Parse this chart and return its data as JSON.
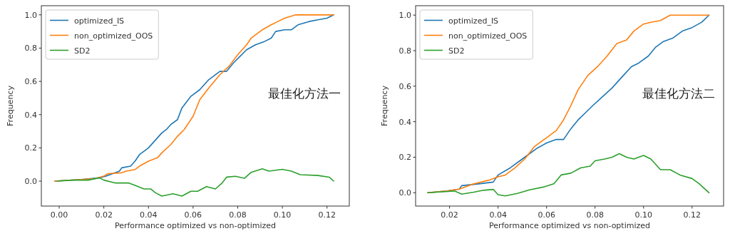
{
  "chart_data": [
    {
      "type": "line",
      "xlabel": "Performance optimized vs non-optimized",
      "ylabel": "Frequency",
      "annotations": [
        "最佳化方法一"
      ],
      "legend": "top left",
      "grid": false,
      "xlim": [
        -0.008,
        0.13
      ],
      "ylim": [
        -0.15,
        1.055
      ],
      "xticks": [
        {
          "value": 0,
          "label": "0.00"
        },
        {
          "value": 0.02,
          "label": "0.02"
        },
        {
          "value": 0.04,
          "label": "0.04"
        },
        {
          "value": 0.06,
          "label": "0.06"
        },
        {
          "value": 0.08,
          "label": "0.08"
        },
        {
          "value": 0.1,
          "label": "0.10"
        },
        {
          "value": 0.12,
          "label": "0.12"
        }
      ],
      "yticks": [
        {
          "value": 0,
          "label": "0.0"
        },
        {
          "value": 0.2,
          "label": "0.2"
        },
        {
          "value": 0.4,
          "label": "0.4"
        },
        {
          "value": 0.6,
          "label": "0.6"
        },
        {
          "value": 0.8,
          "label": "0.8"
        },
        {
          "value": 1,
          "label": "1.0"
        }
      ],
      "series": [
        {
          "name": "optimized_IS",
          "color": "#1f77b4",
          "x": [
            -0.002,
            0.01,
            0.018,
            0.021,
            0.024,
            0.027,
            0.028,
            0.032,
            0.034,
            0.036,
            0.038,
            0.04,
            0.042,
            0.044,
            0.046,
            0.048,
            0.05,
            0.053,
            0.055,
            0.059,
            0.063,
            0.067,
            0.072,
            0.075,
            0.078,
            0.081,
            0.084,
            0.088,
            0.092,
            0.095,
            0.097,
            0.101,
            0.104,
            0.107,
            0.112,
            0.116,
            0.12,
            0.123
          ],
          "values": [
            0.0,
            0.01,
            0.02,
            0.03,
            0.045,
            0.06,
            0.08,
            0.09,
            0.12,
            0.16,
            0.18,
            0.2,
            0.23,
            0.26,
            0.29,
            0.31,
            0.34,
            0.37,
            0.44,
            0.51,
            0.55,
            0.61,
            0.66,
            0.66,
            0.71,
            0.75,
            0.79,
            0.82,
            0.84,
            0.86,
            0.9,
            0.91,
            0.91,
            0.94,
            0.96,
            0.97,
            0.98,
            1.0
          ]
        },
        {
          "name": "non_optimized_OOS",
          "color": "#ff7f0e",
          "x": [
            -0.002,
            0.01,
            0.016,
            0.02,
            0.022,
            0.028,
            0.03,
            0.034,
            0.036,
            0.04,
            0.044,
            0.046,
            0.05,
            0.053,
            0.056,
            0.058,
            0.06,
            0.063,
            0.067,
            0.072,
            0.076,
            0.08,
            0.084,
            0.086,
            0.091,
            0.095,
            0.098,
            0.101,
            0.106,
            0.11,
            0.123
          ],
          "values": [
            0.0,
            0.01,
            0.015,
            0.03,
            0.045,
            0.05,
            0.06,
            0.07,
            0.09,
            0.12,
            0.14,
            0.17,
            0.22,
            0.27,
            0.31,
            0.35,
            0.39,
            0.49,
            0.56,
            0.64,
            0.69,
            0.76,
            0.82,
            0.86,
            0.91,
            0.94,
            0.96,
            0.98,
            1.0,
            1.0,
            1.0
          ]
        },
        {
          "name": "SD2",
          "color": "#2ca02c",
          "x": [
            -0.001,
            0.006,
            0.013,
            0.018,
            0.02,
            0.025,
            0.031,
            0.034,
            0.038,
            0.041,
            0.043,
            0.046,
            0.051,
            0.055,
            0.059,
            0.062,
            0.066,
            0.07,
            0.073,
            0.075,
            0.079,
            0.083,
            0.086,
            0.091,
            0.094,
            0.1,
            0.104,
            0.108,
            0.116,
            0.121,
            0.123
          ],
          "values": [
            0.0,
            0.006,
            0.006,
            0.02,
            0.006,
            -0.011,
            -0.011,
            -0.026,
            -0.047,
            -0.047,
            -0.069,
            -0.09,
            -0.076,
            -0.09,
            -0.061,
            -0.061,
            -0.033,
            -0.047,
            -0.011,
            0.024,
            0.029,
            0.017,
            0.053,
            0.074,
            0.06,
            0.071,
            0.06,
            0.039,
            0.034,
            0.024,
            0.0
          ]
        }
      ]
    },
    {
      "type": "line",
      "xlabel": "Performance optimized vs non-optimized",
      "ylabel": "Frequency",
      "annotations": [
        "最佳化方法二"
      ],
      "legend": "top left",
      "grid": false,
      "xlim": [
        0.006,
        0.133
      ],
      "ylim": [
        -0.075,
        1.053
      ],
      "xticks": [
        {
          "value": 0.02,
          "label": "0.02"
        },
        {
          "value": 0.04,
          "label": "0.04"
        },
        {
          "value": 0.06,
          "label": "0.06"
        },
        {
          "value": 0.08,
          "label": "0.08"
        },
        {
          "value": 0.1,
          "label": "0.10"
        },
        {
          "value": 0.12,
          "label": "0.12"
        }
      ],
      "yticks": [
        {
          "value": 0,
          "label": "0.0"
        },
        {
          "value": 0.2,
          "label": "0.2"
        },
        {
          "value": 0.4,
          "label": "0.4"
        },
        {
          "value": 0.6,
          "label": "0.6"
        },
        {
          "value": 0.8,
          "label": "0.8"
        },
        {
          "value": 1,
          "label": "1.0"
        }
      ],
      "series": [
        {
          "name": "optimized_IS",
          "color": "#1f77b4",
          "x": [
            0.011,
            0.019,
            0.024,
            0.025,
            0.032,
            0.038,
            0.04,
            0.045,
            0.049,
            0.053,
            0.056,
            0.06,
            0.064,
            0.067,
            0.07,
            0.073,
            0.076,
            0.079,
            0.083,
            0.087,
            0.091,
            0.095,
            0.098,
            0.102,
            0.105,
            0.108,
            0.112,
            0.116,
            0.12,
            0.124,
            0.127
          ],
          "values": [
            0.0,
            0.01,
            0.02,
            0.04,
            0.05,
            0.06,
            0.1,
            0.14,
            0.18,
            0.22,
            0.25,
            0.28,
            0.3,
            0.3,
            0.36,
            0.41,
            0.45,
            0.49,
            0.54,
            0.59,
            0.65,
            0.71,
            0.73,
            0.77,
            0.82,
            0.85,
            0.87,
            0.91,
            0.93,
            0.96,
            1.0
          ]
        },
        {
          "name": "non_optimized_OOS",
          "color": "#ff7f0e",
          "x": [
            0.011,
            0.019,
            0.024,
            0.03,
            0.036,
            0.04,
            0.043,
            0.047,
            0.051,
            0.055,
            0.06,
            0.064,
            0.067,
            0.07,
            0.073,
            0.077,
            0.081,
            0.085,
            0.089,
            0.093,
            0.096,
            0.1,
            0.103,
            0.107,
            0.111,
            0.127
          ],
          "values": [
            0.0,
            0.01,
            0.02,
            0.05,
            0.07,
            0.09,
            0.1,
            0.14,
            0.19,
            0.26,
            0.31,
            0.35,
            0.41,
            0.49,
            0.58,
            0.66,
            0.71,
            0.77,
            0.84,
            0.86,
            0.91,
            0.95,
            0.96,
            0.97,
            1.0,
            1.0
          ]
        },
        {
          "name": "SD2",
          "color": "#2ca02c",
          "x": [
            0.011,
            0.017,
            0.022,
            0.025,
            0.03,
            0.034,
            0.038,
            0.04,
            0.043,
            0.048,
            0.053,
            0.059,
            0.063,
            0.066,
            0.07,
            0.074,
            0.078,
            0.08,
            0.084,
            0.087,
            0.09,
            0.093,
            0.096,
            0.1,
            0.103,
            0.107,
            0.111,
            0.115,
            0.12,
            0.123,
            0.127
          ],
          "values": [
            0.0,
            0.005,
            0.01,
            -0.008,
            0.003,
            0.014,
            0.019,
            -0.011,
            -0.018,
            -0.004,
            0.016,
            0.033,
            0.05,
            0.1,
            0.11,
            0.14,
            0.15,
            0.18,
            0.19,
            0.2,
            0.22,
            0.2,
            0.19,
            0.21,
            0.19,
            0.13,
            0.13,
            0.1,
            0.08,
            0.05,
            0.0
          ]
        }
      ]
    }
  ]
}
